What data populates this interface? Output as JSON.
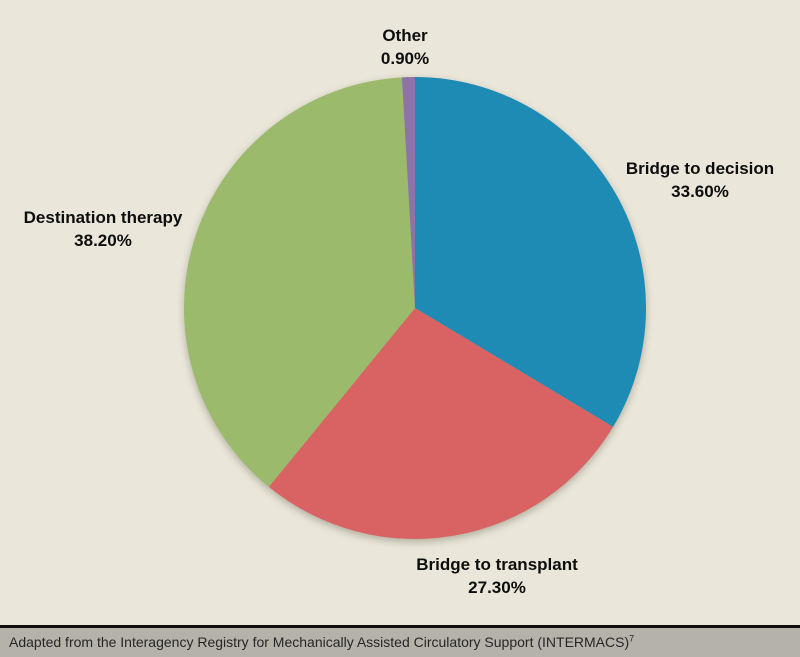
{
  "chart_data": {
    "type": "pie",
    "title": "",
    "categories": [
      "Bridge to decision",
      "Bridge to transplant",
      "Destination therapy",
      "Other"
    ],
    "values": [
      33.6,
      27.3,
      38.2,
      0.9
    ],
    "value_labels": [
      "33.60%",
      "27.30%",
      "38.20%",
      "0.90%"
    ],
    "colors": [
      "#1E8BB5",
      "#D96262",
      "#9BBA6B",
      "#8F72A8"
    ],
    "start_angle_deg": 0,
    "direction": "clockwise",
    "label_position": "outside",
    "legend": "none"
  },
  "footer": {
    "text": "Adapted from the Interagency Registry for Mechanically Assisted Circulatory Support (INTERMACS)",
    "reference_superscript": "7"
  },
  "palette": {
    "background": "#EAE7DA",
    "footer_background": "#B5B2A9",
    "footer_rule": "#0E0E0E",
    "label_text": "#0D0D0D"
  }
}
